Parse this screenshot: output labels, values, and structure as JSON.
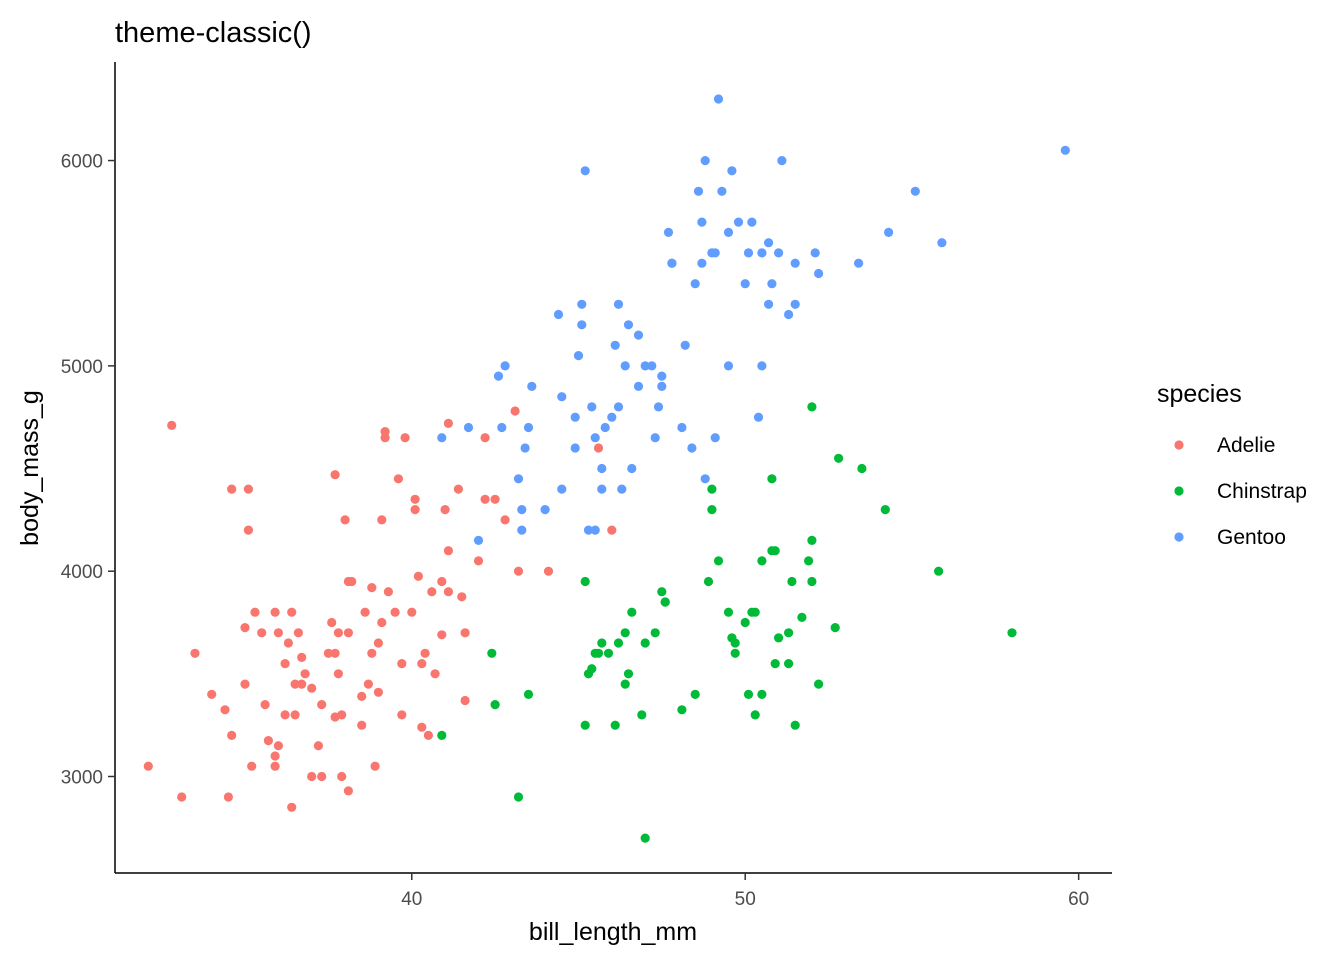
{
  "chart_data": {
    "type": "scatter",
    "title": "theme-classic()",
    "xlabel": "bill_length_mm",
    "ylabel": "body_mass_g",
    "xlim": [
      31.1,
      61.0
    ],
    "ylim": [
      2530,
      6480
    ],
    "xticks": [
      40,
      50,
      60
    ],
    "yticks": [
      3000,
      4000,
      5000,
      6000
    ],
    "grid": false,
    "legend": {
      "title": "species",
      "position": "right"
    },
    "series": [
      {
        "name": "Adelie",
        "color": "#F8766D",
        "points": [
          [
            32.1,
            3050
          ],
          [
            33.1,
            2900
          ],
          [
            33.5,
            3600
          ],
          [
            34.0,
            3400
          ],
          [
            34.4,
            3325
          ],
          [
            34.5,
            2900
          ],
          [
            34.6,
            3200
          ],
          [
            34.6,
            4400
          ],
          [
            35.0,
            3450
          ],
          [
            35.0,
            3725
          ],
          [
            35.1,
            4200
          ],
          [
            35.2,
            3050
          ],
          [
            35.3,
            3800
          ],
          [
            35.5,
            3700
          ],
          [
            35.6,
            3350
          ],
          [
            35.7,
            3175
          ],
          [
            35.9,
            3800
          ],
          [
            35.9,
            3050
          ],
          [
            36.0,
            3700
          ],
          [
            36.0,
            3150
          ],
          [
            36.2,
            3300
          ],
          [
            36.2,
            3550
          ],
          [
            36.4,
            3800
          ],
          [
            36.4,
            2850
          ],
          [
            36.5,
            3300
          ],
          [
            36.6,
            3700
          ],
          [
            36.7,
            3450
          ],
          [
            36.8,
            3500
          ],
          [
            37.0,
            3000
          ],
          [
            37.2,
            3150
          ],
          [
            37.3,
            3350
          ],
          [
            37.3,
            3000
          ],
          [
            37.5,
            3600
          ],
          [
            37.6,
            3750
          ],
          [
            37.7,
            3600
          ],
          [
            37.8,
            3700
          ],
          [
            37.8,
            3500
          ],
          [
            37.9,
            3300
          ],
          [
            38.1,
            3950
          ],
          [
            38.1,
            3700
          ],
          [
            38.2,
            3950
          ],
          [
            38.5,
            3250
          ],
          [
            38.6,
            3800
          ],
          [
            38.7,
            3450
          ],
          [
            38.8,
            3600
          ],
          [
            38.9,
            3050
          ],
          [
            39.0,
            3650
          ],
          [
            39.1,
            3750
          ],
          [
            39.1,
            4250
          ],
          [
            39.2,
            4650
          ],
          [
            39.3,
            3900
          ],
          [
            39.5,
            3800
          ],
          [
            39.6,
            4450
          ],
          [
            39.7,
            3550
          ],
          [
            39.8,
            4650
          ],
          [
            40.0,
            3800
          ],
          [
            40.1,
            4300
          ],
          [
            40.2,
            3975
          ],
          [
            40.3,
            3550
          ],
          [
            40.5,
            3200
          ],
          [
            40.6,
            3900
          ],
          [
            40.7,
            3500
          ],
          [
            40.9,
            3950
          ],
          [
            41.0,
            4300
          ],
          [
            41.1,
            3900
          ],
          [
            41.1,
            4100
          ],
          [
            41.4,
            4400
          ],
          [
            41.5,
            3875
          ],
          [
            41.6,
            3700
          ],
          [
            42.0,
            4050
          ],
          [
            42.2,
            4650
          ],
          [
            42.5,
            4350
          ],
          [
            42.8,
            4250
          ],
          [
            43.1,
            4780
          ],
          [
            43.2,
            4000
          ],
          [
            44.1,
            4000
          ],
          [
            45.6,
            4600
          ],
          [
            46.0,
            4200
          ],
          [
            32.8,
            4710
          ],
          [
            35.1,
            4400
          ],
          [
            37.7,
            4470
          ],
          [
            38.0,
            4250
          ],
          [
            39.2,
            4680
          ],
          [
            40.1,
            4350
          ],
          [
            41.1,
            4720
          ],
          [
            42.2,
            4350
          ],
          [
            38.8,
            3920
          ],
          [
            37.7,
            3290
          ],
          [
            36.3,
            3650
          ],
          [
            39.0,
            3410
          ],
          [
            40.4,
            3600
          ],
          [
            36.5,
            3450
          ],
          [
            37.0,
            3430
          ],
          [
            38.5,
            3390
          ],
          [
            39.7,
            3300
          ],
          [
            41.6,
            3370
          ],
          [
            40.9,
            3690
          ],
          [
            36.7,
            3580
          ],
          [
            40.3,
            3240
          ],
          [
            38.1,
            2930
          ],
          [
            35.9,
            3100
          ],
          [
            37.9,
            3000
          ]
        ]
      },
      {
        "name": "Chinstrap",
        "color": "#00BA38",
        "points": [
          [
            40.9,
            3200
          ],
          [
            42.4,
            3600
          ],
          [
            42.5,
            3350
          ],
          [
            43.2,
            2900
          ],
          [
            43.5,
            3400
          ],
          [
            45.2,
            3250
          ],
          [
            45.2,
            3950
          ],
          [
            45.4,
            3525
          ],
          [
            45.6,
            3600
          ],
          [
            45.7,
            3650
          ],
          [
            45.9,
            3600
          ],
          [
            46.1,
            3250
          ],
          [
            46.2,
            3650
          ],
          [
            46.4,
            3700
          ],
          [
            46.4,
            3450
          ],
          [
            46.6,
            3800
          ],
          [
            46.9,
            3300
          ],
          [
            47.0,
            3650
          ],
          [
            47.0,
            2700
          ],
          [
            47.3,
            3700
          ],
          [
            47.5,
            3900
          ],
          [
            47.6,
            3850
          ],
          [
            48.1,
            3325
          ],
          [
            48.5,
            3400
          ],
          [
            48.9,
            3950
          ],
          [
            49.0,
            4400
          ],
          [
            49.2,
            4050
          ],
          [
            49.5,
            3800
          ],
          [
            49.6,
            3675
          ],
          [
            49.7,
            3600
          ],
          [
            50.1,
            3400
          ],
          [
            50.2,
            3800
          ],
          [
            50.3,
            3300
          ],
          [
            50.5,
            3400
          ],
          [
            50.5,
            4050
          ],
          [
            50.8,
            4100
          ],
          [
            50.8,
            4450
          ],
          [
            50.9,
            3550
          ],
          [
            51.0,
            3675
          ],
          [
            51.3,
            3700
          ],
          [
            51.4,
            3950
          ],
          [
            51.5,
            3250
          ],
          [
            51.7,
            3775
          ],
          [
            52.0,
            4150
          ],
          [
            52.0,
            4800
          ],
          [
            52.2,
            3450
          ],
          [
            52.7,
            3725
          ],
          [
            52.8,
            4550
          ],
          [
            53.5,
            4500
          ],
          [
            54.2,
            4300
          ],
          [
            55.8,
            4000
          ],
          [
            58.0,
            3700
          ],
          [
            45.3,
            3500
          ],
          [
            46.5,
            3500
          ],
          [
            49.0,
            4300
          ],
          [
            50.0,
            3750
          ],
          [
            51.3,
            3550
          ],
          [
            52.0,
            3950
          ],
          [
            45.5,
            3600
          ],
          [
            50.9,
            4100
          ],
          [
            49.7,
            3650
          ],
          [
            50.3,
            3800
          ],
          [
            47.6,
            3850
          ],
          [
            51.9,
            4050
          ]
        ]
      },
      {
        "name": "Gentoo",
        "color": "#619CFF",
        "points": [
          [
            40.9,
            4650
          ],
          [
            41.7,
            4700
          ],
          [
            42.0,
            4150
          ],
          [
            42.6,
            4950
          ],
          [
            42.7,
            4700
          ],
          [
            42.8,
            5000
          ],
          [
            43.2,
            4450
          ],
          [
            43.3,
            4300
          ],
          [
            43.4,
            4600
          ],
          [
            43.5,
            4700
          ],
          [
            43.6,
            4900
          ],
          [
            44.0,
            4300
          ],
          [
            44.4,
            5250
          ],
          [
            44.5,
            4850
          ],
          [
            44.9,
            4750
          ],
          [
            45.0,
            5050
          ],
          [
            45.1,
            5300
          ],
          [
            45.1,
            5200
          ],
          [
            45.2,
            5950
          ],
          [
            45.3,
            4200
          ],
          [
            45.4,
            4800
          ],
          [
            45.5,
            4650
          ],
          [
            45.7,
            4400
          ],
          [
            45.8,
            4700
          ],
          [
            46.1,
            5100
          ],
          [
            46.2,
            5300
          ],
          [
            46.3,
            4400
          ],
          [
            46.4,
            5000
          ],
          [
            46.5,
            5200
          ],
          [
            46.8,
            5150
          ],
          [
            47.0,
            5000
          ],
          [
            47.2,
            5000
          ],
          [
            47.3,
            4650
          ],
          [
            47.5,
            4950
          ],
          [
            47.7,
            5650
          ],
          [
            47.8,
            5500
          ],
          [
            48.1,
            4700
          ],
          [
            48.4,
            4600
          ],
          [
            48.5,
            5400
          ],
          [
            48.6,
            5850
          ],
          [
            48.7,
            5700
          ],
          [
            48.8,
            6000
          ],
          [
            49.1,
            5550
          ],
          [
            49.2,
            6300
          ],
          [
            49.3,
            5850
          ],
          [
            49.5,
            5650
          ],
          [
            49.6,
            5950
          ],
          [
            49.8,
            5700
          ],
          [
            50.0,
            5400
          ],
          [
            50.1,
            5550
          ],
          [
            50.2,
            5700
          ],
          [
            50.4,
            4750
          ],
          [
            50.5,
            5550
          ],
          [
            50.7,
            5600
          ],
          [
            50.8,
            5400
          ],
          [
            51.1,
            6000
          ],
          [
            51.3,
            5250
          ],
          [
            51.5,
            5500
          ],
          [
            52.1,
            5550
          ],
          [
            52.2,
            5450
          ],
          [
            53.4,
            5500
          ],
          [
            54.3,
            5650
          ],
          [
            55.1,
            5850
          ],
          [
            55.9,
            5600
          ],
          [
            59.6,
            6050
          ],
          [
            46.6,
            4500
          ],
          [
            47.4,
            4800
          ],
          [
            48.2,
            5100
          ],
          [
            48.8,
            4450
          ],
          [
            49.5,
            5000
          ],
          [
            45.5,
            4200
          ],
          [
            46.0,
            4750
          ],
          [
            47.8,
            5500
          ],
          [
            49.0,
            5550
          ],
          [
            50.7,
            5300
          ],
          [
            51.5,
            5300
          ],
          [
            43.3,
            4200
          ],
          [
            44.9,
            4600
          ],
          [
            46.2,
            4800
          ],
          [
            47.5,
            4900
          ],
          [
            48.7,
            5500
          ],
          [
            49.1,
            4650
          ],
          [
            50.5,
            5000
          ],
          [
            51.0,
            5550
          ],
          [
            45.7,
            4500
          ],
          [
            46.8,
            4900
          ],
          [
            44.5,
            4400
          ]
        ]
      }
    ]
  }
}
